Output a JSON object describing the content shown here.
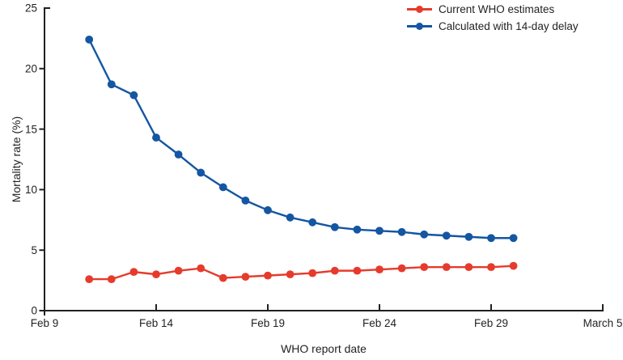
{
  "figure": {
    "background": "#ffffff",
    "axis_color": "#231f20",
    "text_color": "#231f20"
  },
  "chart_data": {
    "type": "line",
    "title": "",
    "xlabel": "WHO report date",
    "ylabel": "Mortality rate (%)",
    "xlim_days": [
      0,
      25
    ],
    "ylim": [
      0,
      25
    ],
    "grid": false,
    "legend_position": "top-right",
    "x_tick_labels": [
      "Feb 9",
      "Feb 14",
      "Feb 19",
      "Feb 24",
      "Feb 29",
      "March 5"
    ],
    "x_tick_days": [
      0,
      5,
      10,
      15,
      20,
      25
    ],
    "y_ticks": [
      0,
      5,
      10,
      15,
      20,
      25
    ],
    "x_dates": [
      "Feb 11",
      "Feb 12",
      "Feb 13",
      "Feb 14",
      "Feb 15",
      "Feb 16",
      "Feb 17",
      "Feb 18",
      "Feb 19",
      "Feb 20",
      "Feb 21",
      "Feb 22",
      "Feb 23",
      "Feb 24",
      "Feb 25",
      "Feb 26",
      "Feb 27",
      "Feb 28",
      "Feb 29",
      "March 1"
    ],
    "x_days": [
      2,
      3,
      4,
      5,
      6,
      7,
      8,
      9,
      10,
      11,
      12,
      13,
      14,
      15,
      16,
      17,
      18,
      19,
      20,
      21
    ],
    "series": [
      {
        "name": "Current WHO estimates",
        "color": "#e63b2c",
        "values": [
          2.6,
          2.6,
          3.2,
          3.0,
          3.3,
          3.5,
          2.7,
          2.8,
          2.9,
          3.0,
          3.1,
          3.3,
          3.3,
          3.4,
          3.5,
          3.6,
          3.6,
          3.6,
          3.6,
          3.7
        ]
      },
      {
        "name": "Calculated with 14-day delay",
        "color": "#1456a2",
        "values": [
          22.4,
          18.7,
          17.8,
          14.3,
          12.9,
          11.4,
          10.2,
          9.1,
          8.3,
          7.7,
          7.3,
          6.9,
          6.7,
          6.6,
          6.5,
          6.3,
          6.2,
          6.1,
          6.0,
          6.0
        ]
      }
    ]
  }
}
